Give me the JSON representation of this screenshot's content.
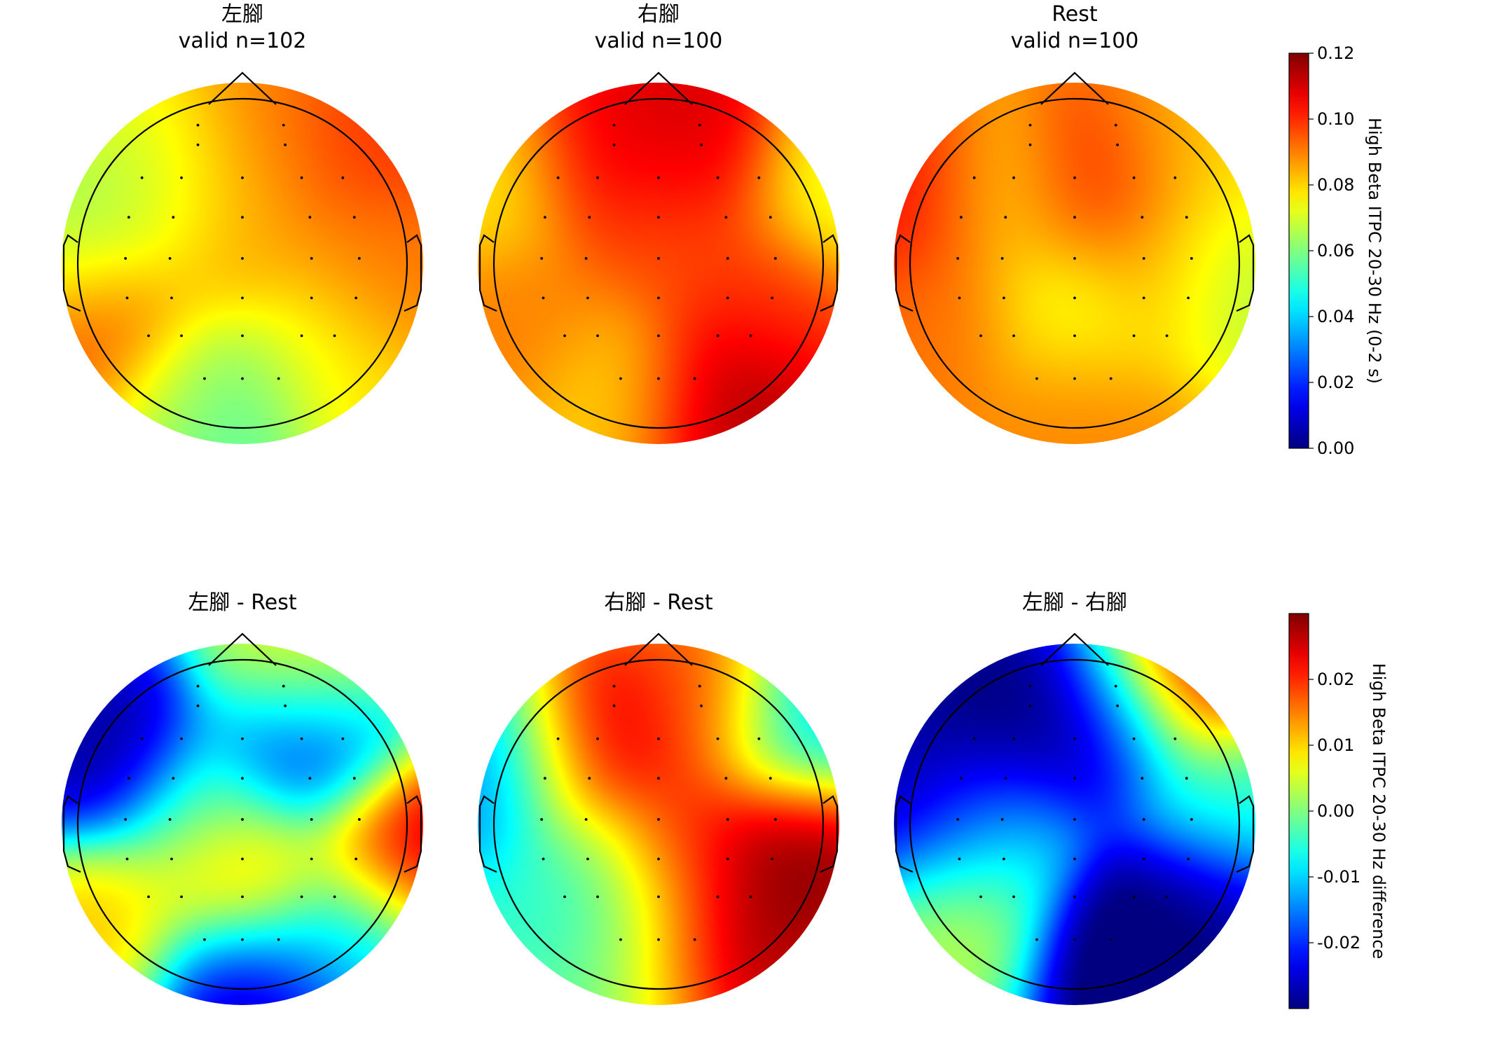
{
  "chart_data": [
    {
      "type": "heatmap",
      "subtype": "topomap",
      "title_lines": [
        "左腳",
        "valid n=102"
      ],
      "colormap": "jet",
      "clim": [
        0.0,
        0.12
      ],
      "colorbar_label": "High Beta ITPC 20-30 Hz (0-2 s)",
      "blobs": [
        {
          "x": -0.35,
          "y": 0.45,
          "v": 0.068
        },
        {
          "x": 0.1,
          "y": 0.6,
          "v": 0.092
        },
        {
          "x": 0.75,
          "y": 0.6,
          "v": 0.1
        },
        {
          "x": -0.85,
          "y": 0.1,
          "v": 0.062
        },
        {
          "x": 0.0,
          "y": 0.1,
          "v": 0.085
        },
        {
          "x": 0.7,
          "y": 0.0,
          "v": 0.09
        },
        {
          "x": -0.75,
          "y": -0.35,
          "v": 0.1
        },
        {
          "x": 0.45,
          "y": -0.45,
          "v": 0.07
        },
        {
          "x": 0.0,
          "y": -0.85,
          "v": 0.05
        },
        {
          "x": -0.3,
          "y": -0.7,
          "v": 0.066
        },
        {
          "x": 0.6,
          "y": -0.7,
          "v": 0.08
        },
        {
          "x": 0.85,
          "y": -0.15,
          "v": 0.092
        }
      ],
      "base": 0.084
    },
    {
      "type": "heatmap",
      "subtype": "topomap",
      "title_lines": [
        "右腳",
        "valid n=100"
      ],
      "colormap": "jet",
      "clim": [
        0.0,
        0.12
      ],
      "blobs": [
        {
          "x": -0.3,
          "y": 0.6,
          "v": 0.11
        },
        {
          "x": 0.25,
          "y": 0.65,
          "v": 0.112
        },
        {
          "x": 0.0,
          "y": 0.2,
          "v": 0.095
        },
        {
          "x": 0.55,
          "y": -0.2,
          "v": 0.1
        },
        {
          "x": 0.35,
          "y": -0.75,
          "v": 0.118
        },
        {
          "x": -0.2,
          "y": -0.7,
          "v": 0.078
        },
        {
          "x": -0.85,
          "y": 0.45,
          "v": 0.075
        },
        {
          "x": 0.9,
          "y": 0.45,
          "v": 0.07
        },
        {
          "x": -0.75,
          "y": -0.3,
          "v": 0.09
        }
      ],
      "base": 0.092
    },
    {
      "type": "heatmap",
      "subtype": "topomap",
      "title_lines": [
        "Rest",
        "valid n=100"
      ],
      "colormap": "jet",
      "clim": [
        0.0,
        0.12
      ],
      "blobs": [
        {
          "x": -0.85,
          "y": 0.35,
          "v": 0.108
        },
        {
          "x": -0.4,
          "y": 0.35,
          "v": 0.075
        },
        {
          "x": 0.1,
          "y": 0.4,
          "v": 0.105
        },
        {
          "x": 0.45,
          "y": 0.0,
          "v": 0.09
        },
        {
          "x": 0.0,
          "y": -0.25,
          "v": 0.068
        },
        {
          "x": 0.8,
          "y": -0.05,
          "v": 0.062
        },
        {
          "x": -0.7,
          "y": -0.3,
          "v": 0.092
        },
        {
          "x": 0.0,
          "y": -0.75,
          "v": 0.09
        },
        {
          "x": 0.55,
          "y": 0.65,
          "v": 0.088
        },
        {
          "x": 0.85,
          "y": 0.55,
          "v": 0.075
        }
      ],
      "base": 0.086
    },
    {
      "type": "heatmap",
      "subtype": "topomap",
      "title_lines": [
        "左腳 - Rest"
      ],
      "colormap": "jet",
      "clim": [
        -0.03,
        0.03
      ],
      "colorbar_label": "High Beta ITPC 20-30 Hz difference",
      "blobs": [
        {
          "x": -0.8,
          "y": 0.4,
          "v": -0.03
        },
        {
          "x": 0.4,
          "y": 0.4,
          "v": -0.028
        },
        {
          "x": 0.0,
          "y": -0.85,
          "v": -0.03
        },
        {
          "x": 0.0,
          "y": -0.3,
          "v": 0.022
        },
        {
          "x": 0.85,
          "y": -0.1,
          "v": 0.03
        },
        {
          "x": -0.75,
          "y": -0.55,
          "v": 0.012
        },
        {
          "x": 0.4,
          "y": 0.8,
          "v": 0.01
        },
        {
          "x": -0.2,
          "y": 0.0,
          "v": -0.006
        },
        {
          "x": 0.55,
          "y": -0.55,
          "v": -0.012
        }
      ],
      "base": -0.004
    },
    {
      "type": "heatmap",
      "subtype": "topomap",
      "title_lines": [
        "右腳 - Rest"
      ],
      "colormap": "jet",
      "clim": [
        -0.03,
        0.03
      ],
      "blobs": [
        {
          "x": -0.4,
          "y": 0.45,
          "v": 0.028
        },
        {
          "x": 0.25,
          "y": 0.65,
          "v": 0.02
        },
        {
          "x": 0.1,
          "y": -0.15,
          "v": 0.022
        },
        {
          "x": 0.75,
          "y": -0.15,
          "v": 0.032
        },
        {
          "x": 0.3,
          "y": -0.75,
          "v": 0.032
        },
        {
          "x": -0.85,
          "y": 0.35,
          "v": -0.018
        },
        {
          "x": 0.8,
          "y": 0.55,
          "v": -0.012
        },
        {
          "x": -0.35,
          "y": -0.35,
          "v": -0.006
        },
        {
          "x": -0.1,
          "y": -0.8,
          "v": -0.002
        }
      ],
      "base": -0.001
    },
    {
      "type": "heatmap",
      "subtype": "topomap",
      "title_lines": [
        "左腳 - 右腳"
      ],
      "colormap": "jet",
      "clim": [
        -0.03,
        0.03
      ],
      "blobs": [
        {
          "x": -0.4,
          "y": 0.5,
          "v": -0.032
        },
        {
          "x": 0.2,
          "y": 0.55,
          "v": -0.028
        },
        {
          "x": -0.85,
          "y": 0.1,
          "v": -0.03
        },
        {
          "x": 0.3,
          "y": -0.7,
          "v": -0.034
        },
        {
          "x": 0.7,
          "y": -0.5,
          "v": -0.03
        },
        {
          "x": 0.6,
          "y": 0.8,
          "v": 0.03
        },
        {
          "x": -0.65,
          "y": -0.5,
          "v": 0.006
        },
        {
          "x": -0.45,
          "y": -0.05,
          "v": -0.008
        },
        {
          "x": 0.85,
          "y": 0.1,
          "v": -0.004
        }
      ],
      "base": -0.016
    }
  ],
  "colorbars": [
    {
      "ticks": [
        "0.00",
        "0.02",
        "0.04",
        "0.06",
        "0.08",
        "0.10",
        "0.12"
      ],
      "tick_values": [
        0.0,
        0.02,
        0.04,
        0.06,
        0.08,
        0.1,
        0.12
      ],
      "range": [
        0.0,
        0.12
      ],
      "label": "High Beta ITPC 20-30 Hz (0-2 s)"
    },
    {
      "ticks": [
        "-0.02",
        "-0.01",
        "0.00",
        "0.01",
        "0.02"
      ],
      "tick_values": [
        -0.02,
        -0.01,
        0.0,
        0.01,
        0.02
      ],
      "range": [
        -0.03,
        0.03
      ],
      "label": "High Beta ITPC 20-30 Hz difference"
    }
  ],
  "sensors": [
    [
      -0.27,
      0.84
    ],
    [
      0.25,
      0.84
    ],
    [
      -0.27,
      0.72
    ],
    [
      0.26,
      0.72
    ],
    [
      -0.61,
      0.52
    ],
    [
      -0.37,
      0.52
    ],
    [
      0.0,
      0.52
    ],
    [
      0.36,
      0.52
    ],
    [
      0.61,
      0.52
    ],
    [
      -0.69,
      0.28
    ],
    [
      -0.42,
      0.28
    ],
    [
      0.0,
      0.28
    ],
    [
      0.41,
      0.28
    ],
    [
      0.68,
      0.28
    ],
    [
      -0.71,
      0.03
    ],
    [
      -0.44,
      0.03
    ],
    [
      0.0,
      0.03
    ],
    [
      0.42,
      0.03
    ],
    [
      0.71,
      0.03
    ],
    [
      -0.7,
      -0.21
    ],
    [
      -0.43,
      -0.21
    ],
    [
      0.0,
      -0.21
    ],
    [
      0.42,
      -0.21
    ],
    [
      0.69,
      -0.21
    ],
    [
      -0.57,
      -0.44
    ],
    [
      -0.37,
      -0.44
    ],
    [
      0.0,
      -0.44
    ],
    [
      0.36,
      -0.44
    ],
    [
      0.56,
      -0.44
    ],
    [
      -0.23,
      -0.7
    ],
    [
      0.0,
      -0.7
    ],
    [
      0.22,
      -0.7
    ]
  ]
}
